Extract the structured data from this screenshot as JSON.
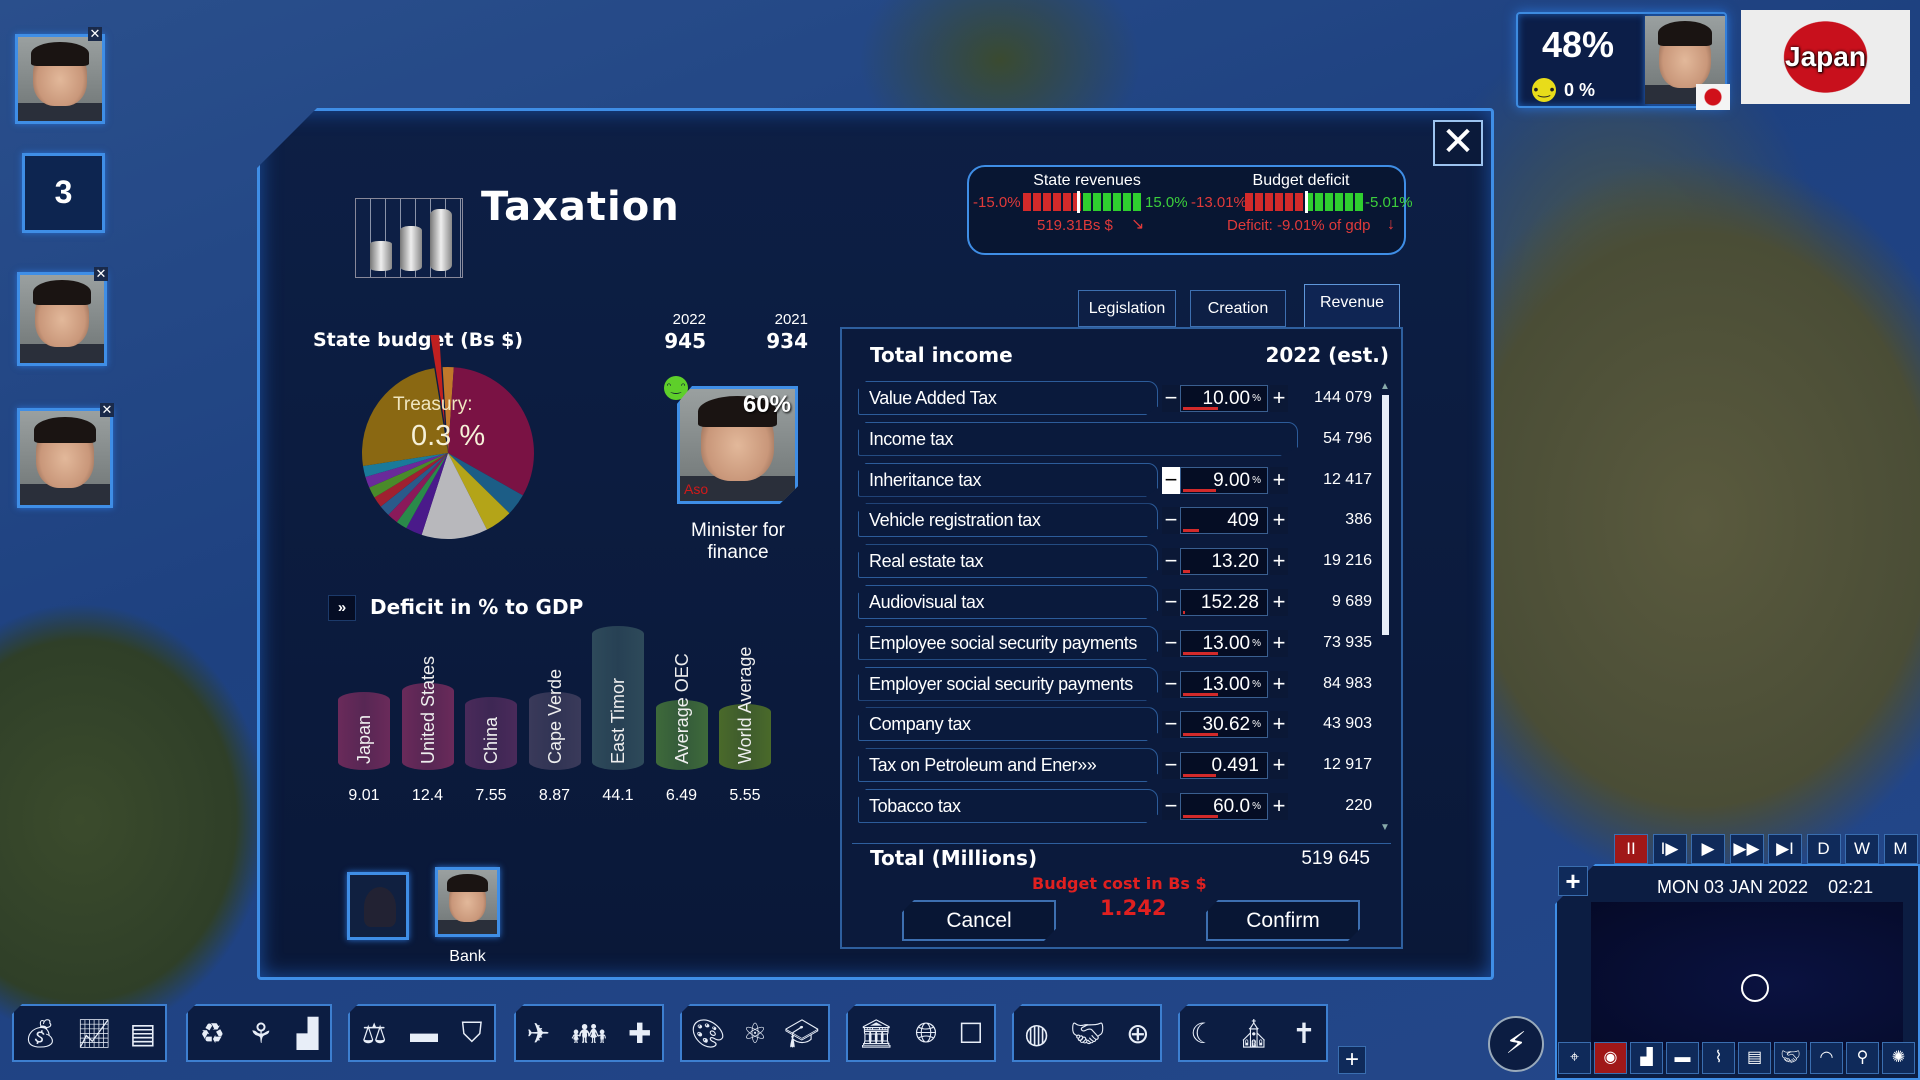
{
  "window": {
    "title": "Taxation",
    "close_label": "✕"
  },
  "hud": {
    "approval": "48%",
    "approval_change": "0 %",
    "country": "Japan",
    "mood_icon": "neutral-face-icon"
  },
  "side_portraits": [
    {
      "label": ""
    },
    {
      "label": "3"
    },
    {
      "label": ""
    },
    {
      "label": ""
    }
  ],
  "stats": {
    "state_revenues": {
      "title": "State revenues",
      "min": "-15.0%",
      "max": "15.0%",
      "value": "519.31Bs $",
      "level": 0.45
    },
    "budget_deficit": {
      "title": "Budget deficit",
      "min": "-13.01%",
      "max": "-5.01%",
      "value": "Deficit: -9.01% of gdp",
      "level": 0.5
    }
  },
  "budget": {
    "title": "State budget (Bs $)",
    "years": [
      {
        "year": "2022",
        "value": "945"
      },
      {
        "year": "2021",
        "value": "934"
      }
    ],
    "treasury_label": "Treasury:",
    "treasury_value": "0.3 %"
  },
  "minister": {
    "approval": "60%",
    "name": "Aso",
    "role": "Minister for finance",
    "mood": "happy"
  },
  "chart_data": [
    {
      "type": "pie",
      "slices": [
        {
          "value": 0.02,
          "color": "#c0782a"
        },
        {
          "value": 0.31,
          "color": "#7a1244"
        },
        {
          "value": 0.04,
          "color": "#1c5d86"
        },
        {
          "value": 0.05,
          "color": "#b4a418"
        },
        {
          "value": 0.12,
          "color": "#b8b8bc"
        },
        {
          "value": 0.03,
          "color": "#4a1a8a"
        },
        {
          "value": 0.02,
          "color": "#2a8a4a"
        },
        {
          "value": 0.02,
          "color": "#8a1a5a"
        },
        {
          "value": 0.02,
          "color": "#2a5a8a"
        },
        {
          "value": 0.02,
          "color": "#a02030"
        },
        {
          "value": 0.02,
          "color": "#4a8a2a"
        },
        {
          "value": 0.02,
          "color": "#6a2a9a"
        },
        {
          "value": 0.02,
          "color": "#1a7a9a"
        },
        {
          "value": 0.24,
          "color": "#8a6812"
        },
        {
          "value": 0.015,
          "color": "#c02020",
          "exploded": true
        }
      ]
    },
    {
      "type": "bar",
      "title": "Deficit in % to GDP",
      "categories": [
        "Japan",
        "United States",
        "China",
        "Cape Verde",
        "East Timor",
        "Average OEC",
        "World Average"
      ],
      "values": [
        9.01,
        12.4,
        7.55,
        8.87,
        44.1,
        6.49,
        5.55
      ],
      "value_labels": [
        "9.01",
        "12.4",
        "7.55",
        "8.87",
        "44.1",
        "6.49",
        "5.55"
      ],
      "colors": [
        "#6a2a5a",
        "#6a2a5a",
        "#4a2a5a",
        "#3a3a5a",
        "#2e4a5a",
        "#3e6a3a",
        "#4a6a2a"
      ]
    }
  ],
  "advisors": [
    {
      "label": "",
      "icon": "spy-icon"
    },
    {
      "label": "Bank"
    }
  ],
  "tabs": [
    {
      "label": "Legislation"
    },
    {
      "label": "Creation"
    },
    {
      "label": "Revenue",
      "active": true
    }
  ],
  "income": {
    "title": "Total income",
    "year": "2022 (est.)",
    "rows": [
      {
        "name": "Value Added Tax",
        "value": "10.00",
        "pct": "%",
        "revenue": "144 079",
        "fill": 0.4
      },
      {
        "name": "Income tax",
        "value": null,
        "revenue": "54 796"
      },
      {
        "name": "Inheritance tax",
        "value": "9.00",
        "pct": "%",
        "revenue": "12 417",
        "fill": 0.38,
        "minus_active": true
      },
      {
        "name": "Vehicle registration tax",
        "value": "409",
        "pct": "",
        "revenue": "386",
        "fill": 0.18
      },
      {
        "name": "Real estate tax",
        "value": "13.20",
        "pct": "",
        "revenue": "19 216",
        "fill": 0.08
      },
      {
        "name": "Audiovisual tax",
        "value": "152.28",
        "pct": "",
        "revenue": "9 689",
        "fill": 0.02
      },
      {
        "name": "Employee social security payments",
        "value": "13.00",
        "pct": "%",
        "revenue": "73 935",
        "fill": 0.4
      },
      {
        "name": "Employer social security payments",
        "value": "13.00",
        "pct": "%",
        "revenue": "84 983",
        "fill": 0.4
      },
      {
        "name": "Company tax",
        "value": "30.62",
        "pct": "%",
        "revenue": "43 903",
        "fill": 0.4
      },
      {
        "name": "Tax on Petroleum and Ener»»",
        "value": "0.491",
        "pct": "",
        "revenue": "12 917",
        "fill": 0.38
      },
      {
        "name": "Tobacco tax",
        "value": "60.0",
        "pct": "%",
        "revenue": "220",
        "fill": 0.4
      }
    ],
    "total_label": "Total (Millions)",
    "total_value": "519 645",
    "budget_cost_label": "Budget cost in Bs $",
    "budget_cost_value": "1.242",
    "cancel": "Cancel",
    "confirm": "Confirm"
  },
  "time": {
    "date": "MON 03 JAN 2022",
    "clock": "02:21",
    "controls": [
      "II",
      "I▶",
      "▶",
      "▶▶",
      "▶I",
      "D",
      "W",
      "M"
    ],
    "zoom_label": "+"
  },
  "colors": {
    "accent": "#3f8ee6",
    "negative": "#e03a3a",
    "positive": "#3ccf3c",
    "panel": "#0b1a3c"
  }
}
